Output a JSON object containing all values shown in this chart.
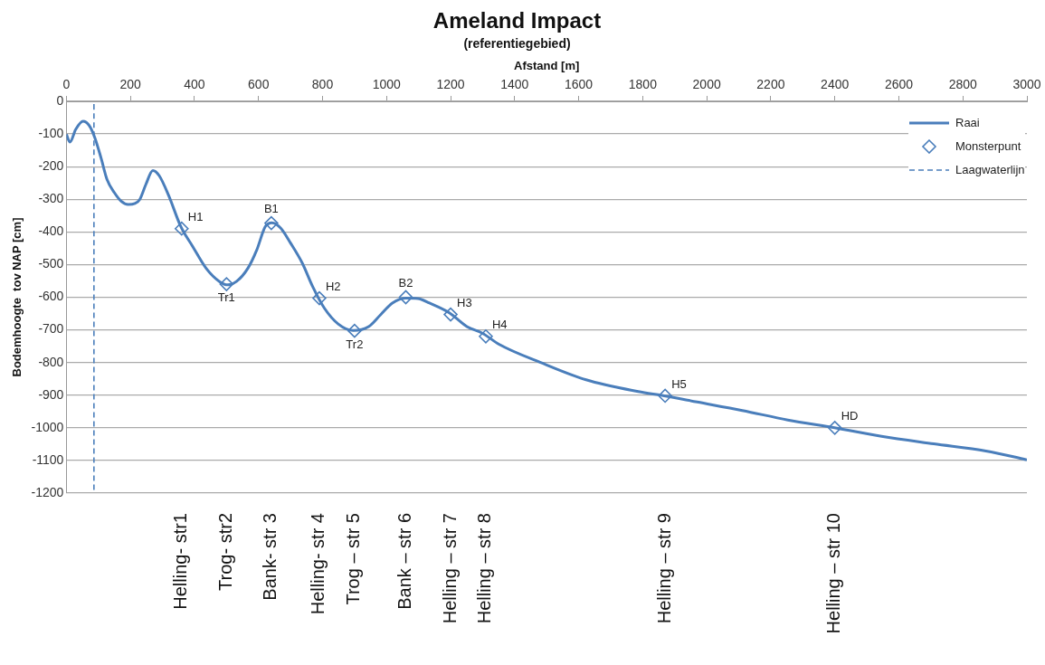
{
  "chart_data": {
    "type": "line",
    "title": "Ameland Impact",
    "subtitle": "(referentiegebied)",
    "xlabel": "Afstand [m]",
    "ylabel": "Bodemhoogte  tov NAP [cm]",
    "xlim": [
      0,
      3000
    ],
    "xticks": [
      0,
      200,
      400,
      600,
      800,
      1000,
      1200,
      1400,
      1600,
      1800,
      2000,
      2200,
      2400,
      2600,
      2800,
      3000
    ],
    "ylim": [
      -1200,
      0
    ],
    "yticks": [
      0,
      -100,
      -200,
      -300,
      -400,
      -500,
      -600,
      -700,
      -800,
      -900,
      -1000,
      -1100,
      -1200
    ],
    "grid": "y",
    "legend": "top right",
    "series": [
      {
        "name": "Raai",
        "color": "#4a7ebb",
        "line_style": "solid",
        "marker": "none",
        "x": [
          0,
          11,
          29,
          52,
          71,
          89,
          108,
          127,
          150,
          171,
          193,
          214,
          230,
          248,
          270,
          290,
          320,
          357,
          394,
          436,
          478,
          504,
          531,
          567,
          595,
          621,
          642,
          669,
          700,
          737,
          769,
          806,
          849,
          896,
          944,
          981,
          1018,
          1061,
          1098,
          1134,
          1198,
          1251,
          1299,
          1351,
          1481,
          1623,
          1786,
          1867,
          1970,
          2111,
          2253,
          2399,
          2546,
          2709,
          2872,
          3000
        ],
        "values": [
          -101,
          -125,
          -86,
          -61,
          -74,
          -112,
          -173,
          -240,
          -280,
          -306,
          -316,
          -313,
          -299,
          -255,
          -212,
          -228,
          -290,
          -383,
          -444,
          -511,
          -552,
          -562,
          -552,
          -511,
          -454,
          -384,
          -372,
          -388,
          -434,
          -496,
          -567,
          -634,
          -682,
          -702,
          -690,
          -654,
          -618,
          -603,
          -604,
          -618,
          -649,
          -690,
          -710,
          -744,
          -800,
          -853,
          -889,
          -902,
          -921,
          -947,
          -976,
          -1000,
          -1026,
          -1049,
          -1071,
          -1098
        ]
      },
      {
        "name": "Monsterpunt",
        "type": "scatter",
        "color": "#4a7ebb",
        "marker": "diamond",
        "x": [
          360,
          500,
          640,
          790,
          900,
          1060,
          1200,
          1310,
          1870,
          2400
        ],
        "values": [
          -390,
          -560,
          -373,
          -603,
          -703,
          -600,
          -653,
          -720,
          -902,
          -1000
        ],
        "value_labels": [
          "H1",
          "Tr1",
          "B1",
          "H2",
          "Tr2",
          "B2",
          "H3",
          "H4",
          "H5",
          "HD"
        ]
      },
      {
        "name": "Laagwaterlijn",
        "color": "#4a7ebb",
        "line_style": "dashed",
        "marker": "none",
        "x": [
          86,
          86
        ],
        "values": [
          -1190,
          0
        ]
      }
    ],
    "annotations": [
      "Helling- str1",
      "Trog- str2",
      "Bank- str 3",
      "Helling- str 4",
      "Trog – str 5",
      "Bank – str 6",
      "Helling – str 7",
      "Helling – str 8",
      "Helling – str 9",
      "Helling – str 10"
    ]
  }
}
